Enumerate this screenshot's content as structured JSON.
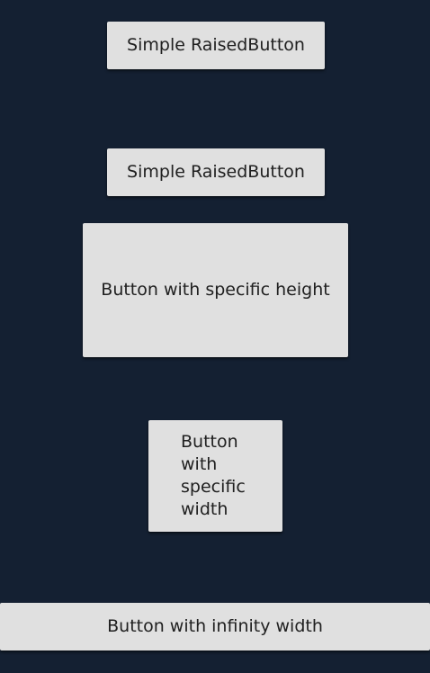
{
  "buttons": {
    "simple_1": "Simple RaisedButton",
    "simple_2": "Simple RaisedButton",
    "specific_height": "Button with specific height",
    "specific_width": "Button with specific width",
    "infinity_width": "Button with infinity width"
  },
  "colors": {
    "background": "#142032",
    "button_surface": "#e0e0e0",
    "button_text": "#202020"
  }
}
